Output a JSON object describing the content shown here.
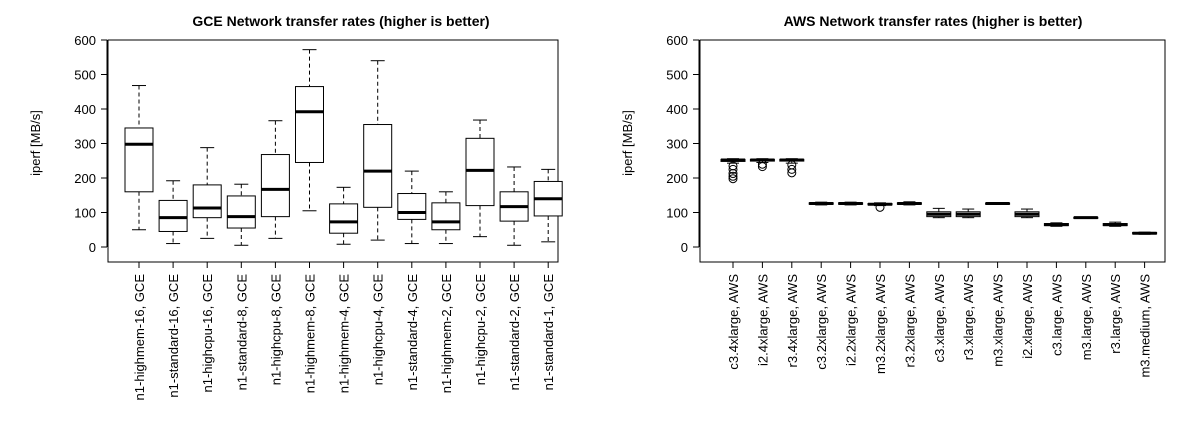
{
  "chart_data": [
    {
      "type": "boxplot",
      "title": "GCE Network transfer rates (higher is better)",
      "ylabel": "iperf [MB/s]",
      "xlabel": "",
      "ylim": [
        0,
        600
      ],
      "yticks": [
        0,
        100,
        200,
        300,
        400,
        500,
        600
      ],
      "grid": false,
      "categories": [
        "n1-highmem-16, GCE",
        "n1-standard-16, GCE",
        "n1-highcpu-16, GCE",
        "n1-standard-8, GCE",
        "n1-highcpu-8, GCE",
        "n1-highmem-8, GCE",
        "n1-highmem-4, GCE",
        "n1-highcpu-4, GCE",
        "n1-standard-4, GCE",
        "n1-highmem-2, GCE",
        "n1-highcpu-2, GCE",
        "n1-standard-2, GCE",
        "n1-standard-1, GCE"
      ],
      "boxes": [
        {
          "min": 50,
          "q1": 160,
          "median": 298,
          "q3": 345,
          "max": 468,
          "outliers": []
        },
        {
          "min": 10,
          "q1": 45,
          "median": 85,
          "q3": 135,
          "max": 192,
          "outliers": []
        },
        {
          "min": 25,
          "q1": 85,
          "median": 113,
          "q3": 180,
          "max": 288,
          "outliers": []
        },
        {
          "min": 5,
          "q1": 55,
          "median": 88,
          "q3": 148,
          "max": 182,
          "outliers": []
        },
        {
          "min": 25,
          "q1": 88,
          "median": 167,
          "q3": 268,
          "max": 366,
          "outliers": []
        },
        {
          "min": 105,
          "q1": 245,
          "median": 392,
          "q3": 465,
          "max": 572,
          "outliers": []
        },
        {
          "min": 8,
          "q1": 40,
          "median": 73,
          "q3": 125,
          "max": 173,
          "outliers": []
        },
        {
          "min": 20,
          "q1": 115,
          "median": 220,
          "q3": 355,
          "max": 540,
          "outliers": []
        },
        {
          "min": 10,
          "q1": 80,
          "median": 100,
          "q3": 155,
          "max": 220,
          "outliers": []
        },
        {
          "min": 10,
          "q1": 50,
          "median": 73,
          "q3": 128,
          "max": 160,
          "outliers": []
        },
        {
          "min": 30,
          "q1": 120,
          "median": 222,
          "q3": 315,
          "max": 368,
          "outliers": []
        },
        {
          "min": 5,
          "q1": 75,
          "median": 117,
          "q3": 160,
          "max": 232,
          "outliers": []
        },
        {
          "min": 15,
          "q1": 90,
          "median": 140,
          "q3": 190,
          "max": 225,
          "outliers": []
        }
      ]
    },
    {
      "type": "boxplot",
      "title": "AWS Network transfer rates (higher is better)",
      "ylabel": "iperf [MB/s]",
      "xlabel": "",
      "ylim": [
        0,
        600
      ],
      "yticks": [
        0,
        100,
        200,
        300,
        400,
        500,
        600
      ],
      "grid": false,
      "categories": [
        "c3.4xlarge, AWS",
        "i2.4xlarge, AWS",
        "r3.4xlarge, AWS",
        "c3.2xlarge, AWS",
        "i2.2xlarge, AWS",
        "m3.2xlarge, AWS",
        "r3.2xlarge, AWS",
        "c3.xlarge, AWS",
        "r3.xlarge, AWS",
        "m3.xlarge, AWS",
        "i2.xlarge, AWS",
        "c3.large, AWS",
        "m3.large, AWS",
        "r3.large, AWS",
        "m3.medium, AWS"
      ],
      "boxes": [
        {
          "min": 243,
          "q1": 248,
          "median": 252,
          "q3": 254,
          "max": 256,
          "outliers": [
            235,
            225,
            213,
            205,
            198
          ]
        },
        {
          "min": 245,
          "q1": 249,
          "median": 252,
          "q3": 254,
          "max": 256,
          "outliers": [
            240,
            233
          ]
        },
        {
          "min": 243,
          "q1": 249,
          "median": 252,
          "q3": 254,
          "max": 256,
          "outliers": [
            238,
            225,
            215
          ]
        },
        {
          "min": 122,
          "q1": 124,
          "median": 126,
          "q3": 128,
          "max": 130,
          "outliers": []
        },
        {
          "min": 122,
          "q1": 124,
          "median": 126,
          "q3": 128,
          "max": 130,
          "outliers": []
        },
        {
          "min": 120,
          "q1": 122,
          "median": 124,
          "q3": 126,
          "max": 128,
          "outliers": [
            115
          ]
        },
        {
          "min": 122,
          "q1": 124,
          "median": 126,
          "q3": 128,
          "max": 131,
          "outliers": []
        },
        {
          "min": 85,
          "q1": 88,
          "median": 95,
          "q3": 102,
          "max": 112,
          "outliers": []
        },
        {
          "min": 85,
          "q1": 88,
          "median": 95,
          "q3": 102,
          "max": 110,
          "outliers": []
        },
        {
          "min": 124,
          "q1": 125,
          "median": 126,
          "q3": 127,
          "max": 128,
          "outliers": []
        },
        {
          "min": 85,
          "q1": 88,
          "median": 95,
          "q3": 102,
          "max": 110,
          "outliers": []
        },
        {
          "min": 60,
          "q1": 62,
          "median": 65,
          "q3": 68,
          "max": 70,
          "outliers": []
        },
        {
          "min": 83,
          "q1": 84,
          "median": 85,
          "q3": 86,
          "max": 87,
          "outliers": []
        },
        {
          "min": 60,
          "q1": 62,
          "median": 65,
          "q3": 68,
          "max": 72,
          "outliers": []
        },
        {
          "min": 37,
          "q1": 38,
          "median": 40,
          "q3": 42,
          "max": 43,
          "outliers": []
        }
      ]
    }
  ]
}
